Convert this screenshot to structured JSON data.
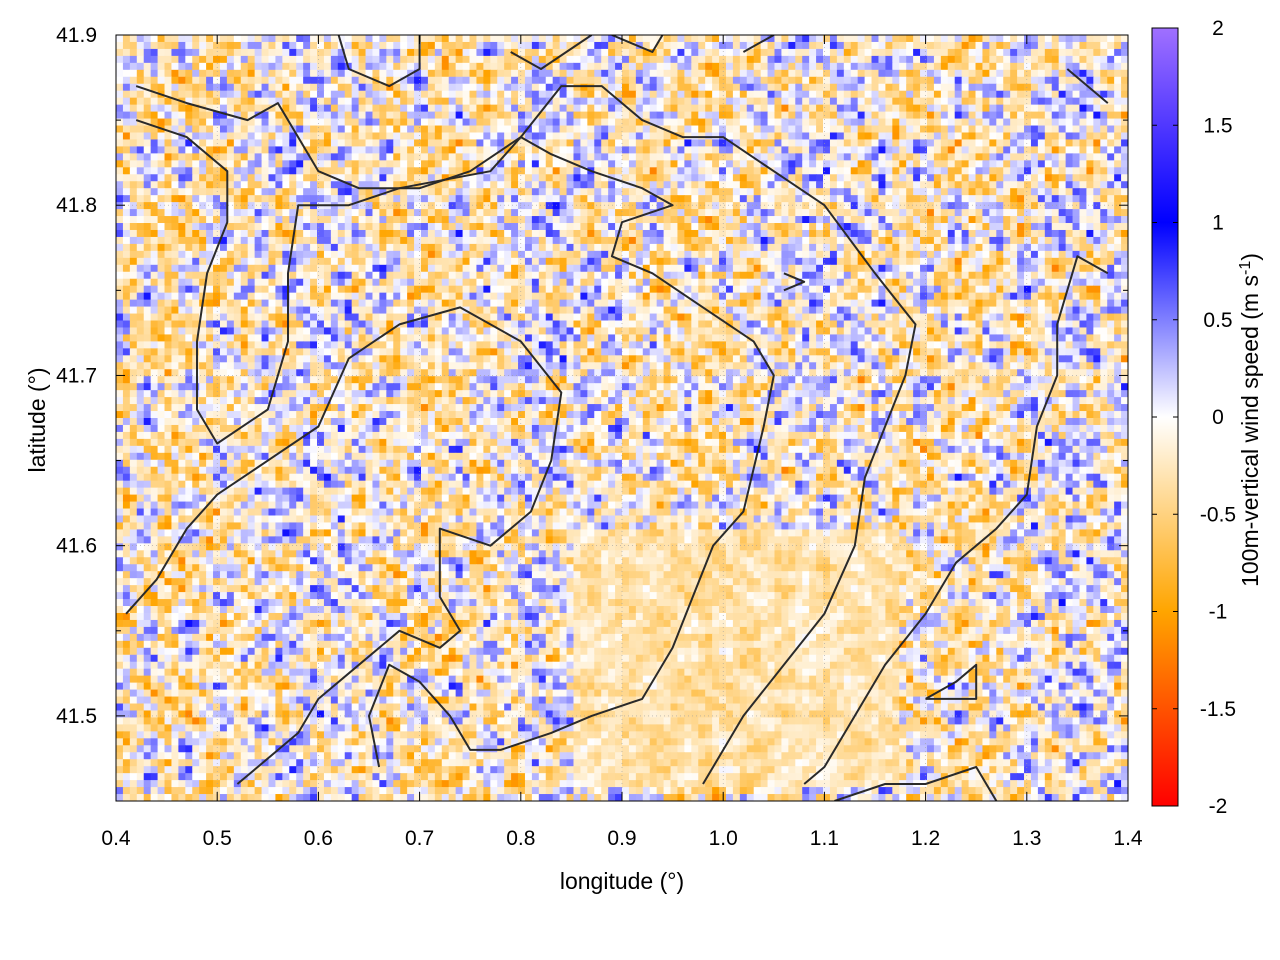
{
  "chart_data": {
    "type": "heatmap",
    "title": "",
    "xlabel": "longitude (°)",
    "ylabel": "latitude (°)",
    "xlim": [
      0.4,
      1.4
    ],
    "ylim": [
      41.45,
      41.9
    ],
    "xticks": [
      "0.4",
      "0.5",
      "0.6",
      "0.7",
      "0.8",
      "0.9",
      "1.0",
      "1.1",
      "1.2",
      "1.3",
      "1.4"
    ],
    "yticks": [
      "41.5",
      "41.6",
      "41.7",
      "41.8",
      "41.9"
    ],
    "grid": true,
    "colorbar": {
      "label_main": "100m-vertical wind speed (m s",
      "label_sup": "-1",
      "label_end": ")",
      "range": [
        -2,
        2
      ],
      "ticks": [
        "2",
        "1.5",
        "1",
        "0.5",
        "0",
        "-0.5",
        "-1",
        "-1.5",
        "-2"
      ],
      "colors": {
        "-2": "#ff0000",
        "-1": "#ffa500",
        "0": "#ffffff",
        "1": "#0000ff",
        "2": "#a070ff"
      }
    },
    "field_description": "Fine-scale alternating updraft (blue) and downdraft (orange) cells, values mostly within -1 to 1 m/s; smoother weak downdraft region near lon 0.85-1.15, lat 41.47-41.60",
    "contours": [
      [
        [
          0.42,
          41.87
        ],
        [
          0.47,
          41.86
        ],
        [
          0.53,
          41.85
        ],
        [
          0.56,
          41.86
        ],
        [
          0.6,
          41.82
        ],
        [
          0.64,
          41.81
        ],
        [
          0.7,
          41.81
        ],
        [
          0.75,
          41.82
        ],
        [
          0.8,
          41.84
        ],
        [
          0.84,
          41.87
        ],
        [
          0.88,
          41.87
        ],
        [
          0.92,
          41.85
        ],
        [
          0.96,
          41.84
        ],
        [
          1.0,
          41.84
        ],
        [
          1.05,
          41.82
        ],
        [
          1.1,
          41.8
        ],
        [
          1.15,
          41.76
        ],
        [
          1.19,
          41.73
        ],
        [
          1.18,
          41.7
        ],
        [
          1.16,
          41.67
        ],
        [
          1.14,
          41.64
        ],
        [
          1.13,
          41.6
        ],
        [
          1.1,
          41.56
        ],
        [
          1.06,
          41.53
        ],
        [
          1.02,
          41.5
        ],
        [
          0.98,
          41.46
        ]
      ],
      [
        [
          0.42,
          41.85
        ],
        [
          0.47,
          41.84
        ],
        [
          0.51,
          41.82
        ],
        [
          0.51,
          41.79
        ],
        [
          0.49,
          41.76
        ],
        [
          0.48,
          41.72
        ],
        [
          0.48,
          41.68
        ],
        [
          0.5,
          41.66
        ],
        [
          0.55,
          41.68
        ],
        [
          0.57,
          41.72
        ],
        [
          0.57,
          41.76
        ],
        [
          0.58,
          41.8
        ],
        [
          0.63,
          41.8
        ],
        [
          0.68,
          41.81
        ],
        [
          0.77,
          41.82
        ],
        [
          0.8,
          41.84
        ],
        [
          0.83,
          41.83
        ],
        [
          0.87,
          41.82
        ],
        [
          0.92,
          41.81
        ],
        [
          0.95,
          41.8
        ],
        [
          0.9,
          41.79
        ],
        [
          0.89,
          41.77
        ],
        [
          0.93,
          41.76
        ],
        [
          0.98,
          41.74
        ],
        [
          1.03,
          41.72
        ],
        [
          1.05,
          41.7
        ],
        [
          1.04,
          41.67
        ],
        [
          1.02,
          41.62
        ],
        [
          0.99,
          41.6
        ],
        [
          0.97,
          41.57
        ],
        [
          0.95,
          41.54
        ],
        [
          0.92,
          41.51
        ],
        [
          0.87,
          41.5
        ],
        [
          0.83,
          41.49
        ],
        [
          0.78,
          41.48
        ],
        [
          0.75,
          41.48
        ],
        [
          0.73,
          41.5
        ],
        [
          0.7,
          41.52
        ],
        [
          0.67,
          41.53
        ],
        [
          0.65,
          41.5
        ],
        [
          0.66,
          41.47
        ]
      ],
      [
        [
          0.41,
          41.56
        ],
        [
          0.44,
          41.58
        ],
        [
          0.47,
          41.61
        ],
        [
          0.5,
          41.63
        ],
        [
          0.55,
          41.65
        ],
        [
          0.6,
          41.67
        ],
        [
          0.63,
          41.71
        ],
        [
          0.68,
          41.73
        ],
        [
          0.74,
          41.74
        ],
        [
          0.8,
          41.72
        ],
        [
          0.84,
          41.69
        ],
        [
          0.83,
          41.65
        ],
        [
          0.81,
          41.62
        ],
        [
          0.77,
          41.6
        ],
        [
          0.72,
          41.61
        ],
        [
          0.72,
          41.57
        ],
        [
          0.74,
          41.55
        ],
        [
          0.72,
          41.54
        ],
        [
          0.68,
          41.55
        ],
        [
          0.64,
          41.53
        ],
        [
          0.6,
          41.51
        ],
        [
          0.58,
          41.49
        ],
        [
          0.54,
          41.47
        ],
        [
          0.52,
          41.46
        ]
      ],
      [
        [
          1.38,
          41.76
        ],
        [
          1.35,
          41.77
        ],
        [
          1.33,
          41.73
        ],
        [
          1.33,
          41.7
        ],
        [
          1.31,
          41.67
        ],
        [
          1.3,
          41.63
        ],
        [
          1.27,
          41.61
        ],
        [
          1.23,
          41.59
        ],
        [
          1.2,
          41.56
        ],
        [
          1.16,
          41.53
        ],
        [
          1.13,
          41.5
        ],
        [
          1.1,
          41.47
        ],
        [
          1.08,
          41.46
        ]
      ],
      [
        [
          1.2,
          41.51
        ],
        [
          1.23,
          41.52
        ],
        [
          1.25,
          41.53
        ],
        [
          1.25,
          41.51
        ],
        [
          1.2,
          41.51
        ]
      ],
      [
        [
          1.11,
          41.45
        ],
        [
          1.16,
          41.46
        ],
        [
          1.2,
          41.46
        ],
        [
          1.25,
          41.47
        ],
        [
          1.27,
          41.45
        ]
      ],
      [
        [
          1.34,
          41.88
        ],
        [
          1.38,
          41.86
        ]
      ],
      [
        [
          0.62,
          41.9
        ],
        [
          0.63,
          41.88
        ],
        [
          0.67,
          41.87
        ],
        [
          0.7,
          41.88
        ],
        [
          0.7,
          41.9
        ]
      ],
      [
        [
          0.79,
          41.89
        ],
        [
          0.82,
          41.88
        ],
        [
          0.87,
          41.9
        ]
      ],
      [
        [
          0.89,
          41.9
        ],
        [
          0.93,
          41.89
        ],
        [
          0.94,
          41.9
        ]
      ],
      [
        [
          1.02,
          41.89
        ],
        [
          1.05,
          41.9
        ]
      ],
      [
        [
          1.06,
          41.76
        ],
        [
          1.08,
          41.755
        ],
        [
          1.06,
          41.75
        ]
      ]
    ]
  }
}
